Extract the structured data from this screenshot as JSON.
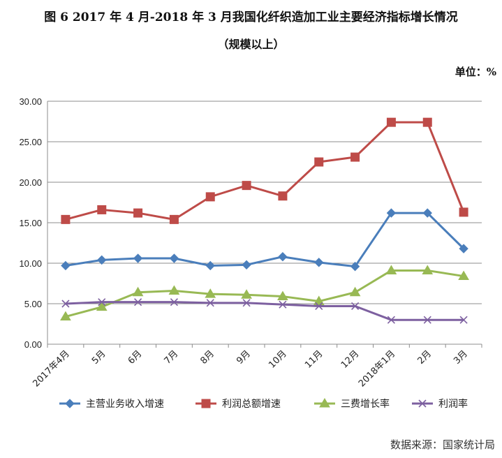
{
  "chart_data": {
    "type": "line",
    "title": "图 6   2017 年 4 月-2018 年 3 月我国化纤织造加工业主要经济指标增长情况",
    "subtitle": "（规模以上）",
    "unit_label": "单位：%",
    "source": "数据来源：国家统计局",
    "categories": [
      "2017年4月",
      "5月",
      "6月",
      "7月",
      "8月",
      "9月",
      "10月",
      "11月",
      "12月",
      "2018年1月",
      "2月",
      "3月"
    ],
    "y_ticks": [
      "30.00",
      "25.00",
      "20.00",
      "15.00",
      "10.00",
      "5.00",
      "0.00"
    ],
    "ylim": [
      0,
      30
    ],
    "grid": true,
    "legend_position": "bottom",
    "series": [
      {
        "name": "主营业务收入增速",
        "color": "#4a7ebb",
        "marker": "diamond",
        "values": [
          9.7,
          10.4,
          10.6,
          10.6,
          9.7,
          9.8,
          10.8,
          10.1,
          9.6,
          16.2,
          16.2,
          11.8
        ]
      },
      {
        "name": "利润总额增速",
        "color": "#be4b48",
        "marker": "square",
        "values": [
          15.4,
          16.6,
          16.2,
          15.4,
          18.2,
          19.6,
          18.3,
          22.5,
          23.1,
          27.4,
          27.4,
          16.3
        ]
      },
      {
        "name": "三费增长率",
        "color": "#98b954",
        "marker": "triangle",
        "values": [
          3.4,
          4.6,
          6.4,
          6.6,
          6.2,
          6.1,
          5.9,
          5.3,
          6.4,
          9.1,
          9.1,
          8.4
        ]
      },
      {
        "name": "利润率",
        "color": "#7d60a0",
        "marker": "x",
        "values": [
          5.0,
          5.2,
          5.2,
          5.2,
          5.1,
          5.1,
          4.9,
          4.7,
          4.7,
          3.0,
          3.0,
          3.0
        ]
      }
    ]
  }
}
